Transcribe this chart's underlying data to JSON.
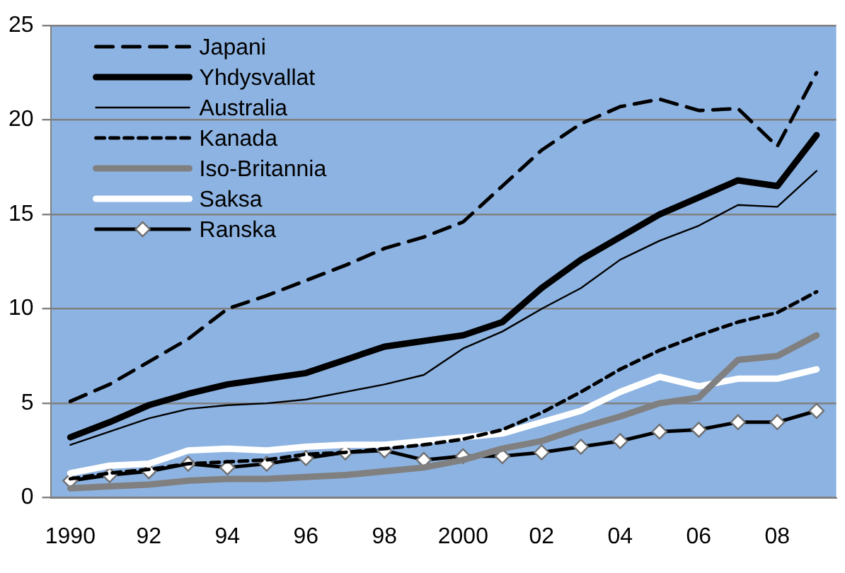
{
  "chart_data": {
    "type": "line",
    "categories": [
      "1990",
      null,
      "92",
      null,
      "94",
      null,
      "96",
      null,
      "98",
      null,
      "2000",
      null,
      "02",
      null,
      "04",
      null,
      "06",
      null,
      "08",
      null
    ],
    "series": [
      {
        "name": "Japani",
        "color": "#000000",
        "line_style": "dashed",
        "marker": "none",
        "values": [
          5.1,
          6.0,
          7.2,
          8.4,
          10.0,
          10.7,
          11.5,
          12.3,
          13.2,
          13.8,
          14.6,
          16.5,
          18.4,
          19.8,
          20.7,
          21.1,
          20.5,
          20.6,
          18.6,
          22.5
        ]
      },
      {
        "name": "Yhdysvallat",
        "color": "#000000",
        "line_style": "solid",
        "marker": "none",
        "values": [
          3.2,
          4.0,
          4.9,
          5.5,
          6.0,
          6.3,
          6.6,
          7.3,
          8.0,
          8.3,
          8.6,
          9.3,
          11.1,
          12.6,
          13.8,
          15.0,
          15.9,
          16.8,
          16.5,
          19.2
        ]
      },
      {
        "name": "Australia",
        "color": "#000000",
        "line_style": "solid",
        "marker": "none",
        "values": [
          2.8,
          3.5,
          4.2,
          4.7,
          4.9,
          5.0,
          5.2,
          5.6,
          6.0,
          6.5,
          7.9,
          8.8,
          10.0,
          11.1,
          12.6,
          13.6,
          14.4,
          15.5,
          15.4,
          17.3
        ]
      },
      {
        "name": "Kanada",
        "color": "#000000",
        "line_style": "dashed",
        "marker": "none",
        "values": [
          1.0,
          1.3,
          1.5,
          1.8,
          1.9,
          2.0,
          2.3,
          2.4,
          2.6,
          2.8,
          3.1,
          3.6,
          4.5,
          5.6,
          6.8,
          7.8,
          8.6,
          9.3,
          9.8,
          10.9
        ]
      },
      {
        "name": "Iso-Britannia",
        "color": "#808080",
        "line_style": "solid",
        "marker": "none",
        "values": [
          0.5,
          0.6,
          0.7,
          0.9,
          1.0,
          1.0,
          1.1,
          1.2,
          1.4,
          1.6,
          2.0,
          2.6,
          3.0,
          3.7,
          4.3,
          5.0,
          5.3,
          7.3,
          7.5,
          8.6
        ]
      },
      {
        "name": "Saksa",
        "color": "#ffffff",
        "line_style": "solid",
        "marker": "none",
        "values": [
          1.3,
          1.7,
          1.8,
          2.5,
          2.6,
          2.5,
          2.7,
          2.8,
          2.8,
          3.0,
          3.2,
          3.4,
          4.0,
          4.6,
          5.6,
          6.4,
          5.9,
          6.3,
          6.3,
          6.8
        ]
      },
      {
        "name": "Ranska",
        "color": "#000000",
        "line_style": "solid",
        "marker": "diamond",
        "values": [
          0.9,
          1.2,
          1.4,
          1.8,
          1.6,
          1.8,
          2.1,
          2.4,
          2.5,
          2.0,
          2.2,
          2.2,
          2.4,
          2.7,
          3.0,
          3.5,
          3.6,
          4.0,
          4.0,
          4.6
        ]
      }
    ],
    "ylim": [
      0,
      25
    ],
    "yticks": [
      0,
      5,
      10,
      15,
      20,
      25
    ],
    "grid": "y",
    "legend": "top left"
  }
}
